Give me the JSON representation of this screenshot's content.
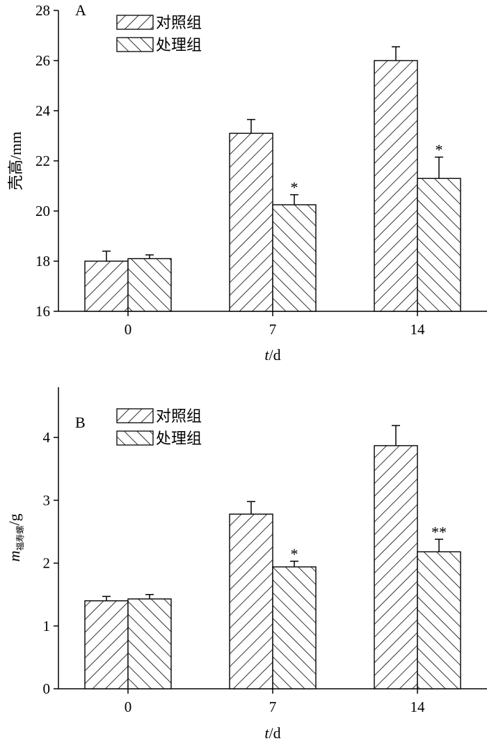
{
  "chart_data": [
    {
      "type": "bar",
      "panel": "A",
      "categories": [
        "0",
        "7",
        "14"
      ],
      "series": [
        {
          "name": "对照组",
          "values": [
            18.0,
            23.1,
            26.0
          ],
          "errors": [
            0.4,
            0.55,
            0.55
          ]
        },
        {
          "name": "处理组",
          "values": [
            18.1,
            20.25,
            21.3
          ],
          "errors": [
            0.15,
            0.4,
            0.85
          ]
        }
      ],
      "significance": [
        "",
        "*",
        "*"
      ],
      "ylabel": "壳高/mm",
      "xlabel_italic": "t",
      "xlabel_rest": "/d",
      "ylim": [
        16,
        28
      ],
      "yticks": [
        "16",
        "18",
        "20",
        "22",
        "24",
        "26",
        "28"
      ],
      "legend": "top-left"
    },
    {
      "type": "bar",
      "panel": "B",
      "categories": [
        "0",
        "7",
        "14"
      ],
      "series": [
        {
          "name": "对照组",
          "values": [
            1.4,
            2.78,
            3.87
          ],
          "errors": [
            0.07,
            0.2,
            0.32
          ]
        },
        {
          "name": "处理组",
          "values": [
            1.43,
            1.94,
            2.18
          ],
          "errors": [
            0.07,
            0.09,
            0.2
          ]
        }
      ],
      "significance": [
        "",
        "*",
        "**"
      ],
      "ylabel_italic": "m",
      "ylabel_sub": "福寿螺",
      "ylabel_rest": "/g",
      "xlabel_italic": "t",
      "xlabel_rest": "/d",
      "ylim": [
        0,
        4.8
      ],
      "yticks": [
        "0",
        "1",
        "2",
        "3",
        "4"
      ],
      "legend": "top-left"
    }
  ]
}
